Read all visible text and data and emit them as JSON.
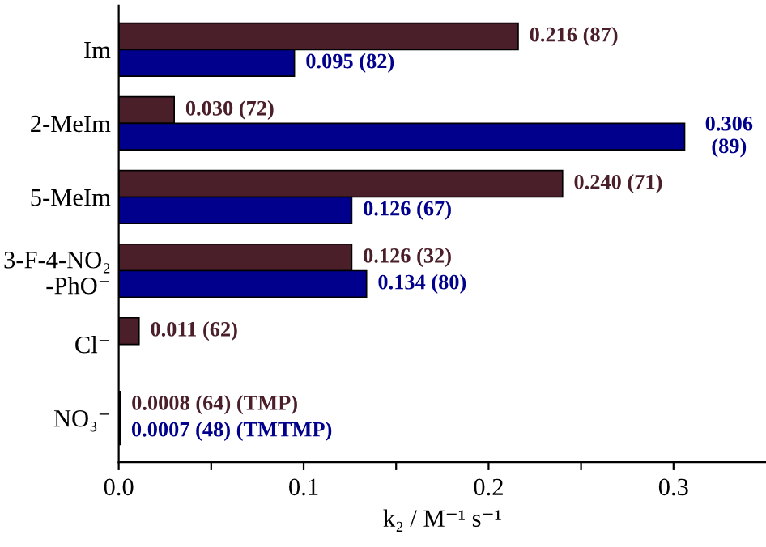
{
  "chart_data": {
    "type": "bar",
    "orientation": "horizontal",
    "xlabel": "k₂ / M⁻¹ s⁻¹",
    "categories": [
      "Im",
      "2-MeIm",
      "5-MeIm",
      "3-F-4-NO₂\n-PhO⁻",
      "Cl⁻",
      "NO₃⁻"
    ],
    "series": [
      {
        "color": "#4a1f2a",
        "values": [
          0.216,
          0.03,
          0.24,
          0.126,
          0.011,
          0.0008
        ],
        "value_labels": [
          "0.216 (87)",
          "0.030 (72)",
          "0.240 (71)",
          "0.126 (32)",
          "0.011 (62)",
          "0.0008 (64) (TMP)"
        ]
      },
      {
        "color": "#00008c",
        "values": [
          0.095,
          0.306,
          0.126,
          0.134,
          null,
          0.0007
        ],
        "value_labels": [
          "0.095 (82)",
          "0.306\n(89)",
          "0.126 (67)",
          "0.134 (80)",
          null,
          "0.0007 (48) (TMTMP)"
        ]
      }
    ],
    "xlim": [
      0,
      0.35
    ],
    "xticks": [
      {
        "value": 0,
        "label": "0.0"
      },
      {
        "value": 0.05,
        "label": null
      },
      {
        "value": 0.1,
        "label": "0.1"
      },
      {
        "value": 0.15,
        "label": null
      },
      {
        "value": 0.2,
        "label": "0.2"
      },
      {
        "value": 0.25,
        "label": null
      },
      {
        "value": 0.3,
        "label": "0.3"
      }
    ],
    "grid": false,
    "legend": false
  }
}
